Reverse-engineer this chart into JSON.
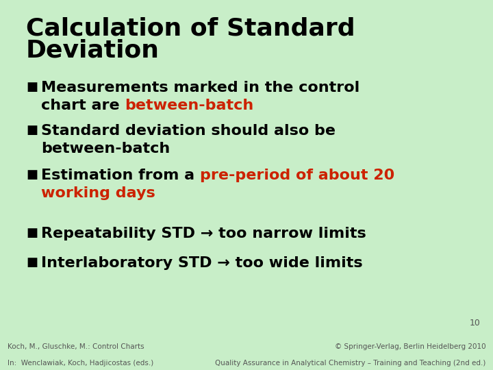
{
  "bg_color": "#c8eec8",
  "footer_bg_color": "#b0d8b0",
  "title_line1": "Calculation of Standard",
  "title_line2": "Deviation",
  "title_fontsize": 26,
  "title_color": "#000000",
  "bullet_symbol": "■",
  "bullet_fontsize": 16,
  "bullet_color": "#000000",
  "footer_left_line1": "Koch, M., Gluschke, M.: Control Charts",
  "footer_left_line2": "In:  Wenclawiak, Koch, Hadjicostas (eds.)",
  "footer_right_line1": "© Springer-Verlag, Berlin Heidelberg 2010",
  "footer_right_line2": "Quality Assurance in Analytical Chemistry – Training and Teaching (2nd ed.)",
  "footer_fontsize": 7.5,
  "footer_color": "#555555",
  "page_number": "10",
  "red_color": "#cc2200"
}
